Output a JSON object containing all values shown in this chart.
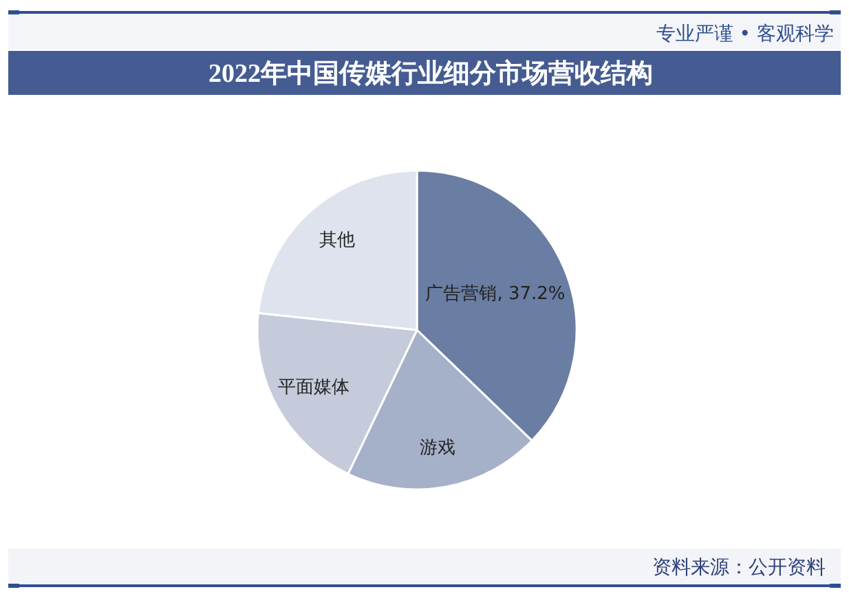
{
  "chart_data": {
    "type": "pie",
    "title": "2022年中国传媒行业细分市场营收结构",
    "categories": [
      "广告营销",
      "游戏",
      "平面媒体",
      "其他"
    ],
    "values": [
      37.2,
      19.9,
      19.6,
      23.3
    ],
    "colors": [
      "#6a7da3",
      "#a5b0c9",
      "#c5cbdb",
      "#dfe3ed"
    ],
    "value_labels": [
      "37.2%",
      null,
      null,
      null
    ],
    "annotations": [
      "专业严谨 • 客观科学",
      "资料来源：公开资料"
    ]
  }
}
